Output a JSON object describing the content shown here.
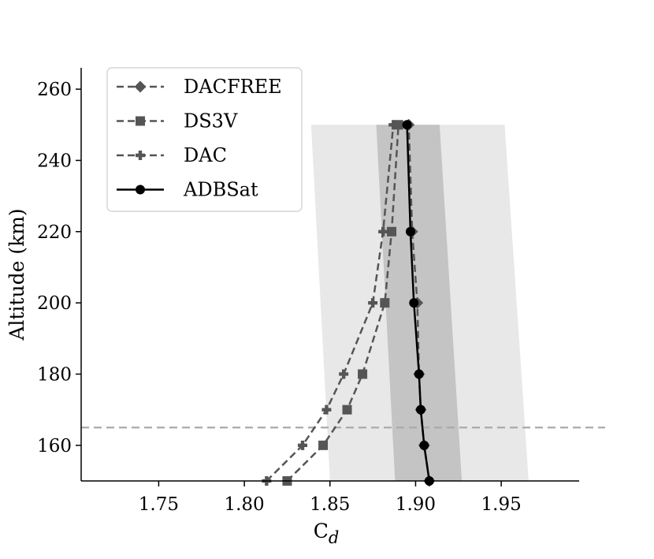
{
  "chart_data": {
    "type": "line",
    "xlabel": "C",
    "xlabel_sub": "d",
    "ylabel": "Altitude (km)",
    "xlim": [
      1.705,
      1.988
    ],
    "ylim": [
      150,
      266
    ],
    "x_ticks": [
      1.75,
      1.8,
      1.85,
      1.9,
      1.95
    ],
    "x_tick_labels": [
      "1.75",
      "1.80",
      "1.85",
      "1.90",
      "1.95"
    ],
    "y_ticks": [
      160,
      180,
      200,
      220,
      240,
      260
    ],
    "y_tick_labels": [
      "160",
      "180",
      "200",
      "220",
      "240",
      "260"
    ],
    "grid": false,
    "legend_position": "top-left",
    "reference_line": {
      "altitude": 165,
      "style": "dashed",
      "color": "#aaaaaa"
    },
    "bands": [
      {
        "color": "#e8e8e8",
        "altitude": [
          150,
          250
        ],
        "lower": [
          1.85,
          1.839
        ],
        "upper": [
          1.966,
          1.952
        ]
      },
      {
        "color": "#c4c4c4",
        "altitude": [
          150,
          250
        ],
        "lower": [
          1.888,
          1.877
        ],
        "upper": [
          1.927,
          1.914
        ]
      }
    ],
    "series": [
      {
        "name": "DACFREE",
        "color": "#555555",
        "line": "dashed",
        "marker": "diamond",
        "x": [
          1.908,
          1.905,
          1.903,
          1.902,
          1.901,
          1.898,
          1.896
        ],
        "y": [
          150,
          160,
          170,
          180,
          200,
          220,
          250
        ]
      },
      {
        "name": "DS3V",
        "color": "#555555",
        "line": "dashed",
        "marker": "square",
        "x": [
          1.825,
          1.846,
          1.86,
          1.869,
          1.882,
          1.886,
          1.89
        ],
        "y": [
          150,
          160,
          170,
          180,
          200,
          220,
          250
        ]
      },
      {
        "name": "DAC",
        "color": "#555555",
        "line": "dashed",
        "marker": "plus",
        "x": [
          1.813,
          1.834,
          1.848,
          1.858,
          1.875,
          1.881,
          1.887
        ],
        "y": [
          150,
          160,
          170,
          180,
          200,
          220,
          250
        ]
      },
      {
        "name": "ADBSat",
        "color": "#000000",
        "line": "solid",
        "marker": "circle",
        "x": [
          1.908,
          1.905,
          1.903,
          1.902,
          1.899,
          1.897,
          1.895
        ],
        "y": [
          150,
          160,
          170,
          180,
          200,
          220,
          250
        ]
      }
    ]
  }
}
